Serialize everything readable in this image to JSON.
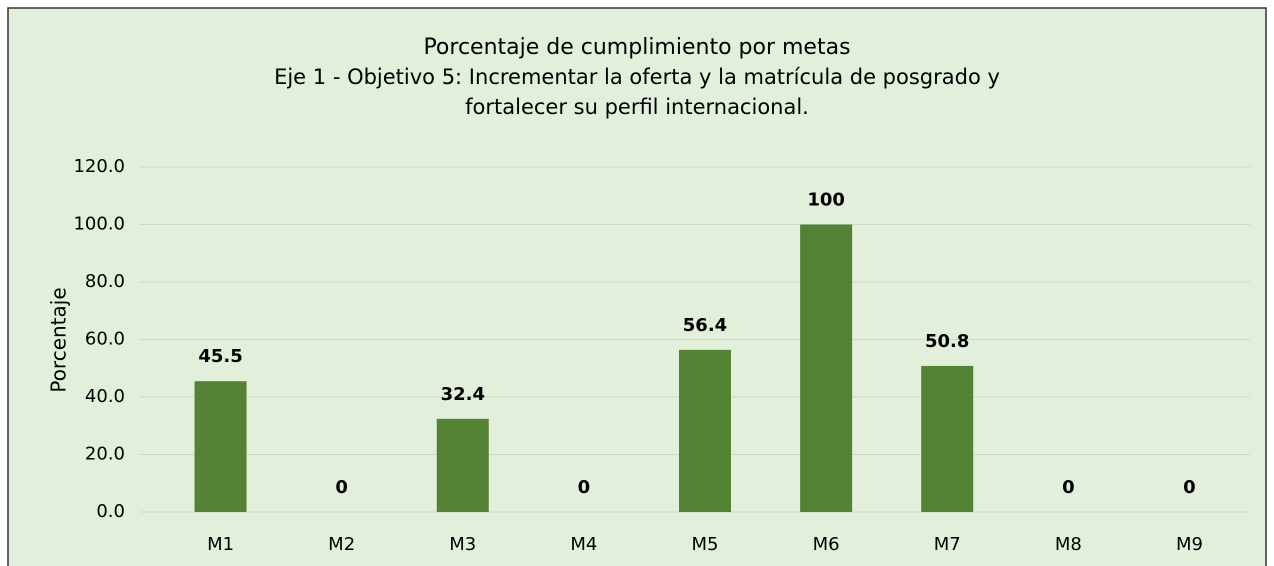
{
  "chart_data": {
    "type": "bar",
    "title": "Porcentaje de cumplimiento por metas",
    "subtitle": [
      "Eje 1 - Objetivo 5: Incrementar la oferta y la matrícula de posgrado y",
      "fortalecer su perfil internacional."
    ],
    "y_label": "Porcentaje",
    "categories": [
      "M1",
      "M2",
      "M3",
      "M4",
      "M5",
      "M6",
      "M7",
      "M8",
      "M9"
    ],
    "values": [
      45.5,
      0,
      32.4,
      0,
      56.4,
      100,
      50.8,
      0,
      0
    ],
    "color": "#548235",
    "ylim": [
      0,
      120
    ],
    "yticks": [
      {
        "value": 0,
        "label": "0.0"
      },
      {
        "value": 20,
        "label": "20.0"
      },
      {
        "value": 40,
        "label": "40.0"
      },
      {
        "value": 60,
        "label": "60.0"
      },
      {
        "value": 80,
        "label": "80.0"
      },
      {
        "value": 100,
        "label": "100.0"
      },
      {
        "value": 120,
        "label": "120.0"
      }
    ],
    "grid": true
  }
}
